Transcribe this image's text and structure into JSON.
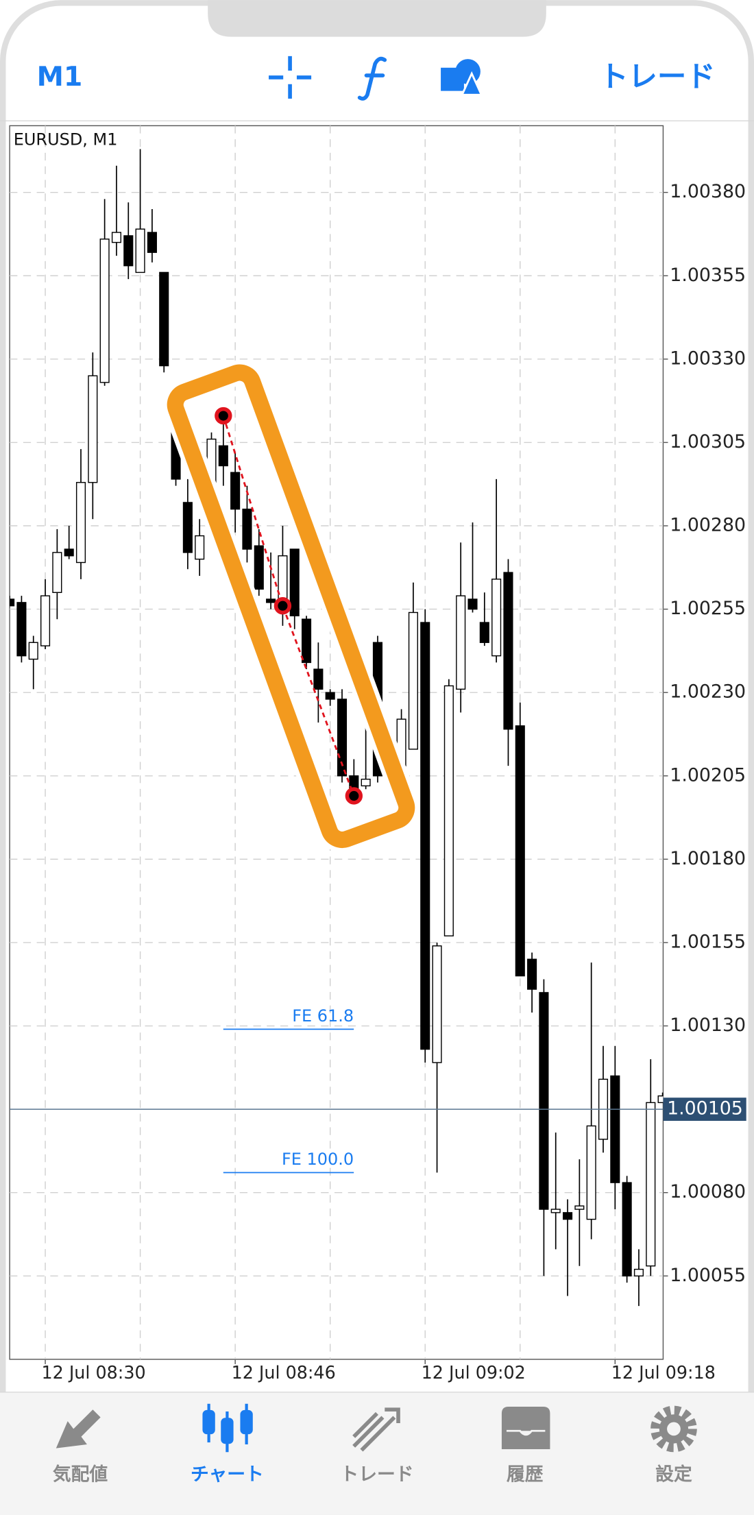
{
  "header": {
    "timeframe": "M1",
    "trade": "トレード"
  },
  "chart_data": {
    "type": "candlestick",
    "title": "EURUSD, M1",
    "open": [
      1.00258,
      1.00257,
      1.0024,
      1.00244,
      1.0026,
      1.00273,
      1.00269,
      1.00293,
      1.00323,
      1.00365,
      1.00367,
      1.00356,
      1.00368,
      1.00356,
      1.00318,
      1.00287,
      1.0027,
      1.00287,
      1.00304,
      1.00296,
      1.00285,
      1.00274,
      1.00258,
      1.00256,
      1.00273,
      1.00252,
      1.00237,
      1.0023,
      1.00228,
      1.00205,
      1.00202,
      1.00245,
      1.00207,
      1.00208,
      1.00213,
      1.00251,
      1.00119,
      1.00157,
      1.00231,
      1.00258,
      1.00251,
      1.00241,
      1.00266,
      1.0022,
      1.0015,
      1.0014,
      1.00074,
      1.00074,
      1.00075,
      1.00072,
      1.00096,
      1.00115,
      1.00083,
      1.00055,
      1.00058,
      1.00107
    ],
    "high": [
      1.00259,
      1.00259,
      1.00247,
      1.00264,
      1.00279,
      1.0028,
      1.00303,
      1.00332,
      1.00378,
      1.00388,
      1.00377,
      1.00393,
      1.00375,
      1.00356,
      1.00319,
      1.00294,
      1.00282,
      1.00308,
      1.00313,
      1.00302,
      1.00292,
      1.00279,
      1.00272,
      1.0028,
      1.00273,
      1.00253,
      1.00245,
      1.00231,
      1.00231,
      1.0021,
      1.00226,
      1.00247,
      1.00211,
      1.00225,
      1.00263,
      1.00255,
      1.00155,
      1.00234,
      1.00275,
      1.00281,
      1.0026,
      1.00294,
      1.0027,
      1.00227,
      1.00152,
      1.00144,
      1.00098,
      1.00078,
      1.0009,
      1.00149,
      1.00124,
      1.00124,
      1.00085,
      1.00063,
      1.0012,
      1.0011
    ],
    "low": [
      1.00256,
      1.00239,
      1.00231,
      1.00243,
      1.00252,
      1.0027,
      1.00264,
      1.00282,
      1.00322,
      1.00361,
      1.00354,
      1.00356,
      1.00359,
      1.00326,
      1.00292,
      1.00267,
      1.00265,
      1.00287,
      1.00292,
      1.00278,
      1.00269,
      1.00259,
      1.00255,
      1.0025,
      1.00249,
      1.00237,
      1.00221,
      1.00226,
      1.00203,
      1.00198,
      1.00201,
      1.00203,
      1.00201,
      1.00205,
      1.00213,
      1.00119,
      1.00086,
      1.00157,
      1.00224,
      1.00254,
      1.00244,
      1.00239,
      1.00208,
      1.00145,
      1.00134,
      1.00055,
      1.00063,
      1.00049,
      1.00058,
      1.00066,
      1.00092,
      1.00075,
      1.00053,
      1.00046,
      1.00055,
      1.00107
    ],
    "close": [
      1.00256,
      1.00241,
      1.00245,
      1.00259,
      1.00272,
      1.00271,
      1.00293,
      1.00325,
      1.00366,
      1.00368,
      1.00358,
      1.00369,
      1.00362,
      1.00328,
      1.00294,
      1.00272,
      1.00277,
      1.00306,
      1.00298,
      1.00285,
      1.00273,
      1.00261,
      1.00257,
      1.00271,
      1.00253,
      1.00239,
      1.00231,
      1.00228,
      1.00205,
      1.00201,
      1.00204,
      1.00205,
      1.00208,
      1.00222,
      1.00254,
      1.00123,
      1.00154,
      1.00232,
      1.00259,
      1.00255,
      1.00245,
      1.00264,
      1.00219,
      1.00145,
      1.00141,
      1.00075,
      1.00075,
      1.00072,
      1.00076,
      1.001,
      1.00114,
      1.00083,
      1.00055,
      1.00057,
      1.00107,
      1.00109
    ],
    "up_color": "#ffffff",
    "down_color": "#000000",
    "ylim": [
      1.0003,
      1.004
    ],
    "yticks": [
      {
        "value": 1.0038,
        "label": "1.00380"
      },
      {
        "value": 1.00355,
        "label": "1.00355"
      },
      {
        "value": 1.0033,
        "label": "1.00330"
      },
      {
        "value": 1.00305,
        "label": "1.00305"
      },
      {
        "value": 1.0028,
        "label": "1.00280"
      },
      {
        "value": 1.00255,
        "label": "1.00255"
      },
      {
        "value": 1.0023,
        "label": "1.00230"
      },
      {
        "value": 1.00205,
        "label": "1.00205"
      },
      {
        "value": 1.0018,
        "label": "1.00180"
      },
      {
        "value": 1.00155,
        "label": "1.00155"
      },
      {
        "value": 1.0013,
        "label": "1.00130"
      },
      {
        "value": 1.0008,
        "label": "1.00080"
      },
      {
        "value": 1.00055,
        "label": "1.00055"
      }
    ],
    "xticks": [
      {
        "value": 3,
        "label": "12 Jul 08:30"
      },
      {
        "value": 19,
        "label": "12 Jul 08:46"
      },
      {
        "value": 35,
        "label": "12 Jul 09:02"
      },
      {
        "value": 51,
        "label": "12 Jul 09:18"
      }
    ],
    "grid": true,
    "current_price": {
      "value": 1.00105,
      "label": "1.00105"
    },
    "fib_points": [
      {
        "index": 18,
        "value": 1.00313
      },
      {
        "index": 23,
        "value": 1.00256
      },
      {
        "index": 29,
        "value": 1.00199
      }
    ],
    "fe_levels": [
      {
        "label": "FE 61.8",
        "value": 1.00129
      },
      {
        "label": "FE 100.0",
        "value": 1.00086
      }
    ]
  },
  "tabs": [
    {
      "label": "気配値",
      "active": false
    },
    {
      "label": "チャート",
      "active": true
    },
    {
      "label": "トレード",
      "active": false
    },
    {
      "label": "履歴",
      "active": false
    },
    {
      "label": "設定",
      "active": false
    }
  ]
}
